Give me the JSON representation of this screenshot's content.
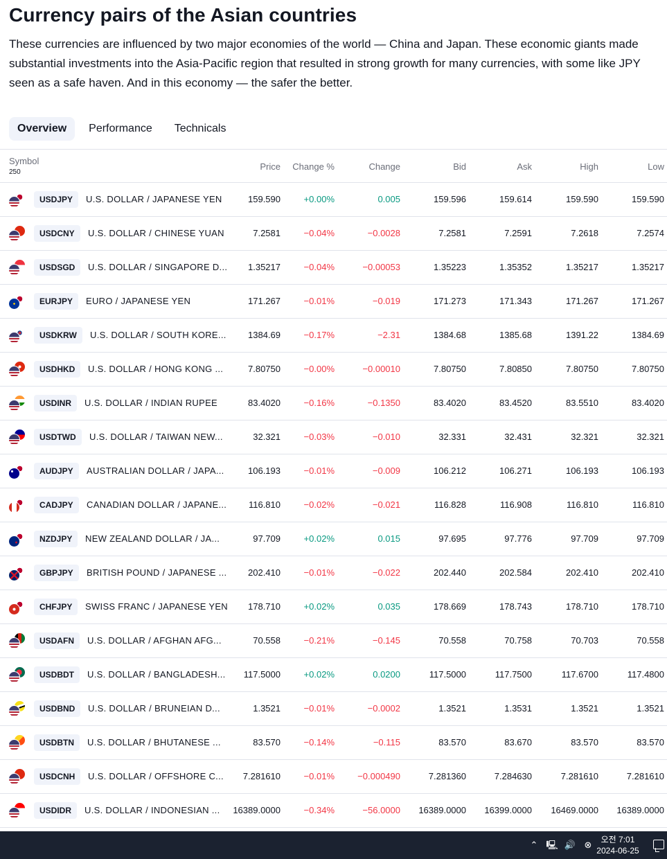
{
  "page": {
    "title": "Currency pairs of the Asian countries",
    "description": "These currencies are influenced by two major economies of the world — China and Japan. These economic giants made substantial investments into the Asia-Pacific region that resulted in strong growth for many currencies, with some like JPY seen as a safe haven. And in this economy — the safer the better."
  },
  "tabs": [
    {
      "label": "Overview",
      "active": true
    },
    {
      "label": "Performance",
      "active": false
    },
    {
      "label": "Technicals",
      "active": false
    }
  ],
  "table": {
    "headers": {
      "symbol": "Symbol",
      "count": "250",
      "price": "Price",
      "change_pct": "Change %",
      "change": "Change",
      "bid": "Bid",
      "ask": "Ask",
      "high": "High",
      "low": "Low"
    },
    "rows": [
      {
        "ticker": "USDJPY",
        "name": "U.S. DOLLAR / JAPANESE YEN",
        "price": "159.590",
        "change_pct": "+0.00%",
        "change": "0.005",
        "bid": "159.596",
        "ask": "159.614",
        "high": "159.590",
        "low": "159.590",
        "dir": "pos",
        "flags": [
          "us",
          "jp"
        ]
      },
      {
        "ticker": "USDCNY",
        "name": "U.S. DOLLAR / CHINESE YUAN",
        "price": "7.2581",
        "change_pct": "−0.04%",
        "change": "−0.0028",
        "bid": "7.2581",
        "ask": "7.2591",
        "high": "7.2618",
        "low": "7.2574",
        "dir": "neg",
        "flags": [
          "us",
          "cn"
        ]
      },
      {
        "ticker": "USDSGD",
        "name": "U.S. DOLLAR / SINGAPORE D...",
        "price": "1.35217",
        "change_pct": "−0.04%",
        "change": "−0.00053",
        "bid": "1.35223",
        "ask": "1.35352",
        "high": "1.35217",
        "low": "1.35217",
        "dir": "neg",
        "flags": [
          "us",
          "sg"
        ]
      },
      {
        "ticker": "EURJPY",
        "name": "EURO / JAPANESE YEN",
        "price": "171.267",
        "change_pct": "−0.01%",
        "change": "−0.019",
        "bid": "171.273",
        "ask": "171.343",
        "high": "171.267",
        "low": "171.267",
        "dir": "neg",
        "flags": [
          "eu",
          "jp"
        ]
      },
      {
        "ticker": "USDKRW",
        "name": "U.S. DOLLAR / SOUTH KORE...",
        "price": "1384.69",
        "change_pct": "−0.17%",
        "change": "−2.31",
        "bid": "1384.68",
        "ask": "1385.68",
        "high": "1391.22",
        "low": "1384.69",
        "dir": "neg",
        "flags": [
          "us",
          "kr"
        ]
      },
      {
        "ticker": "USDHKD",
        "name": "U.S. DOLLAR / HONG KONG ...",
        "price": "7.80750",
        "change_pct": "−0.00%",
        "change": "−0.00010",
        "bid": "7.80750",
        "ask": "7.80850",
        "high": "7.80750",
        "low": "7.80750",
        "dir": "neg",
        "flags": [
          "us",
          "hk"
        ]
      },
      {
        "ticker": "USDINR",
        "name": "U.S. DOLLAR / INDIAN RUPEE",
        "price": "83.4020",
        "change_pct": "−0.16%",
        "change": "−0.1350",
        "bid": "83.4020",
        "ask": "83.4520",
        "high": "83.5510",
        "low": "83.4020",
        "dir": "neg",
        "flags": [
          "us",
          "in"
        ]
      },
      {
        "ticker": "USDTWD",
        "name": "U.S. DOLLAR / TAIWAN NEW...",
        "price": "32.321",
        "change_pct": "−0.03%",
        "change": "−0.010",
        "bid": "32.331",
        "ask": "32.431",
        "high": "32.321",
        "low": "32.321",
        "dir": "neg",
        "flags": [
          "us",
          "tw"
        ]
      },
      {
        "ticker": "AUDJPY",
        "name": "AUSTRALIAN DOLLAR / JAPA...",
        "price": "106.193",
        "change_pct": "−0.01%",
        "change": "−0.009",
        "bid": "106.212",
        "ask": "106.271",
        "high": "106.193",
        "low": "106.193",
        "dir": "neg",
        "flags": [
          "au",
          "jp"
        ]
      },
      {
        "ticker": "CADJPY",
        "name": "CANADIAN DOLLAR / JAPANE...",
        "price": "116.810",
        "change_pct": "−0.02%",
        "change": "−0.021",
        "bid": "116.828",
        "ask": "116.908",
        "high": "116.810",
        "low": "116.810",
        "dir": "neg",
        "flags": [
          "ca",
          "jp"
        ]
      },
      {
        "ticker": "NZDJPY",
        "name": "NEW ZEALAND DOLLAR / JA...",
        "price": "97.709",
        "change_pct": "+0.02%",
        "change": "0.015",
        "bid": "97.695",
        "ask": "97.776",
        "high": "97.709",
        "low": "97.709",
        "dir": "pos",
        "flags": [
          "nz",
          "jp"
        ]
      },
      {
        "ticker": "GBPJPY",
        "name": "BRITISH POUND / JAPANESE ...",
        "price": "202.410",
        "change_pct": "−0.01%",
        "change": "−0.022",
        "bid": "202.440",
        "ask": "202.584",
        "high": "202.410",
        "low": "202.410",
        "dir": "neg",
        "flags": [
          "gb",
          "jp"
        ]
      },
      {
        "ticker": "CHFJPY",
        "name": "SWISS FRANC / JAPANESE YEN",
        "price": "178.710",
        "change_pct": "+0.02%",
        "change": "0.035",
        "bid": "178.669",
        "ask": "178.743",
        "high": "178.710",
        "low": "178.710",
        "dir": "pos",
        "flags": [
          "ch",
          "jp"
        ]
      },
      {
        "ticker": "USDAFN",
        "name": "U.S. DOLLAR / AFGHAN AFG...",
        "price": "70.558",
        "change_pct": "−0.21%",
        "change": "−0.145",
        "bid": "70.558",
        "ask": "70.758",
        "high": "70.703",
        "low": "70.558",
        "dir": "neg",
        "flags": [
          "us",
          "af"
        ]
      },
      {
        "ticker": "USDBDT",
        "name": "U.S. DOLLAR / BANGLADESH...",
        "price": "117.5000",
        "change_pct": "+0.02%",
        "change": "0.0200",
        "bid": "117.5000",
        "ask": "117.7500",
        "high": "117.6700",
        "low": "117.4800",
        "dir": "pos",
        "flags": [
          "us",
          "bd"
        ]
      },
      {
        "ticker": "USDBND",
        "name": "U.S. DOLLAR / BRUNEIAN D...",
        "price": "1.3521",
        "change_pct": "−0.01%",
        "change": "−0.0002",
        "bid": "1.3521",
        "ask": "1.3531",
        "high": "1.3521",
        "low": "1.3521",
        "dir": "neg",
        "flags": [
          "us",
          "bn"
        ]
      },
      {
        "ticker": "USDBTN",
        "name": "U.S. DOLLAR / BHUTANESE ...",
        "price": "83.570",
        "change_pct": "−0.14%",
        "change": "−0.115",
        "bid": "83.570",
        "ask": "83.670",
        "high": "83.570",
        "low": "83.570",
        "dir": "neg",
        "flags": [
          "us",
          "bt"
        ]
      },
      {
        "ticker": "USDCNH",
        "name": "U.S. DOLLAR / OFFSHORE C...",
        "price": "7.281610",
        "change_pct": "−0.01%",
        "change": "−0.000490",
        "bid": "7.281360",
        "ask": "7.284630",
        "high": "7.281610",
        "low": "7.281610",
        "dir": "neg",
        "flags": [
          "us",
          "cn"
        ]
      },
      {
        "ticker": "USDIDR",
        "name": "U.S. DOLLAR / INDONESIAN ...",
        "price": "16389.0000",
        "change_pct": "−0.34%",
        "change": "−56.0000",
        "bid": "16389.0000",
        "ask": "16399.0000",
        "high": "16469.0000",
        "low": "16389.0000",
        "dir": "neg",
        "flags": [
          "us",
          "id"
        ]
      }
    ]
  },
  "taskbar": {
    "time": "오전 7:01",
    "date": "2024-06-25",
    "icons": [
      "chevron-up-icon",
      "network-icon",
      "volume-icon",
      "error-icon",
      "notification-icon"
    ]
  },
  "colors": {
    "positive": "#089981",
    "negative": "#f23645",
    "tab_active_bg": "#f0f3fa",
    "taskbar_bg": "#1b2230"
  }
}
